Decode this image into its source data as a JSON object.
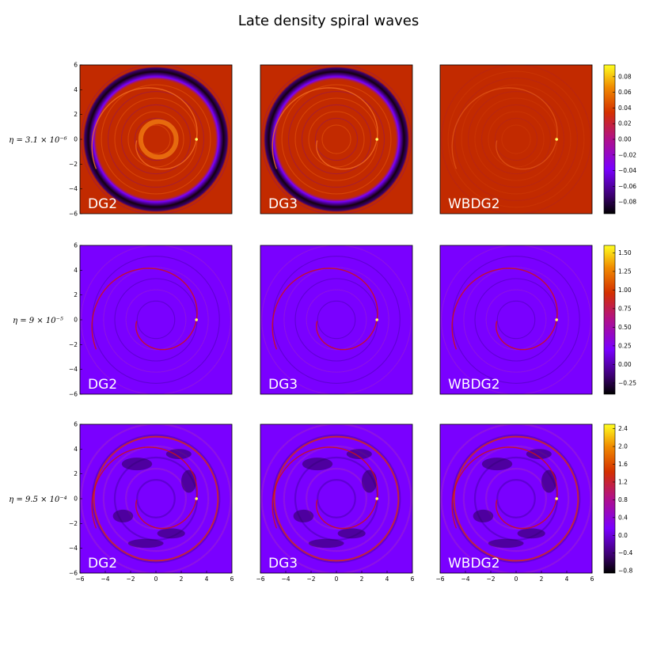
{
  "chart_data": {
    "type": "heatmap",
    "title": "Late density spiral waves",
    "columns": [
      "DG2",
      "DG3",
      "WBDG2"
    ],
    "xlim": [
      -6,
      6
    ],
    "ylim": [
      -6,
      6
    ],
    "x_ticks": [
      -6,
      -4,
      -2,
      0,
      2,
      4,
      6
    ],
    "y_ticks": [
      -6,
      -4,
      -2,
      0,
      2,
      4,
      6
    ],
    "colormap": "gnuplot",
    "rows": [
      {
        "eta_label": "η = 3.1 × 10⁻⁶",
        "colorbar_range": [
          -0.095,
          0.095
        ],
        "colorbar_ticks": [
          "0.08",
          "0.06",
          "0.04",
          "0.02",
          "0.00",
          "−0.02",
          "−0.04",
          "−0.06",
          "−0.08"
        ],
        "colorbar_tick_values": [
          0.08,
          0.06,
          0.04,
          0.02,
          0.0,
          -0.02,
          -0.04,
          -0.06,
          -0.08
        ],
        "panels": [
          "DG2",
          "DG3",
          "WBDG2"
        ]
      },
      {
        "eta_label": "η = 9 × 10⁻⁵",
        "colorbar_range": [
          -0.4,
          1.6
        ],
        "colorbar_ticks": [
          "1.50",
          "1.25",
          "1.00",
          "0.75",
          "0.50",
          "0.25",
          "0.00",
          "−0.25"
        ],
        "colorbar_tick_values": [
          1.5,
          1.25,
          1.0,
          0.75,
          0.5,
          0.25,
          0.0,
          -0.25
        ],
        "panels": [
          "DG2",
          "DG3",
          "WBDG2"
        ]
      },
      {
        "eta_label": "η = 9.5 × 10⁻⁴",
        "colorbar_range": [
          -0.85,
          2.5
        ],
        "colorbar_ticks": [
          "2.4",
          "2.0",
          "1.6",
          "1.2",
          "0.8",
          "0.4",
          "0.0",
          "−0.4",
          "−0.8"
        ],
        "colorbar_tick_values": [
          2.4,
          2.0,
          1.6,
          1.2,
          0.8,
          0.4,
          0.0,
          -0.4,
          -0.8
        ],
        "panels": [
          "DG2",
          "DG3",
          "WBDG2"
        ]
      }
    ],
    "colors": {
      "background_row1": "#c22a00",
      "background_row23": "#7a00ff",
      "dark_ring": "#1a0010",
      "bright_accent": "#ffb000"
    }
  }
}
